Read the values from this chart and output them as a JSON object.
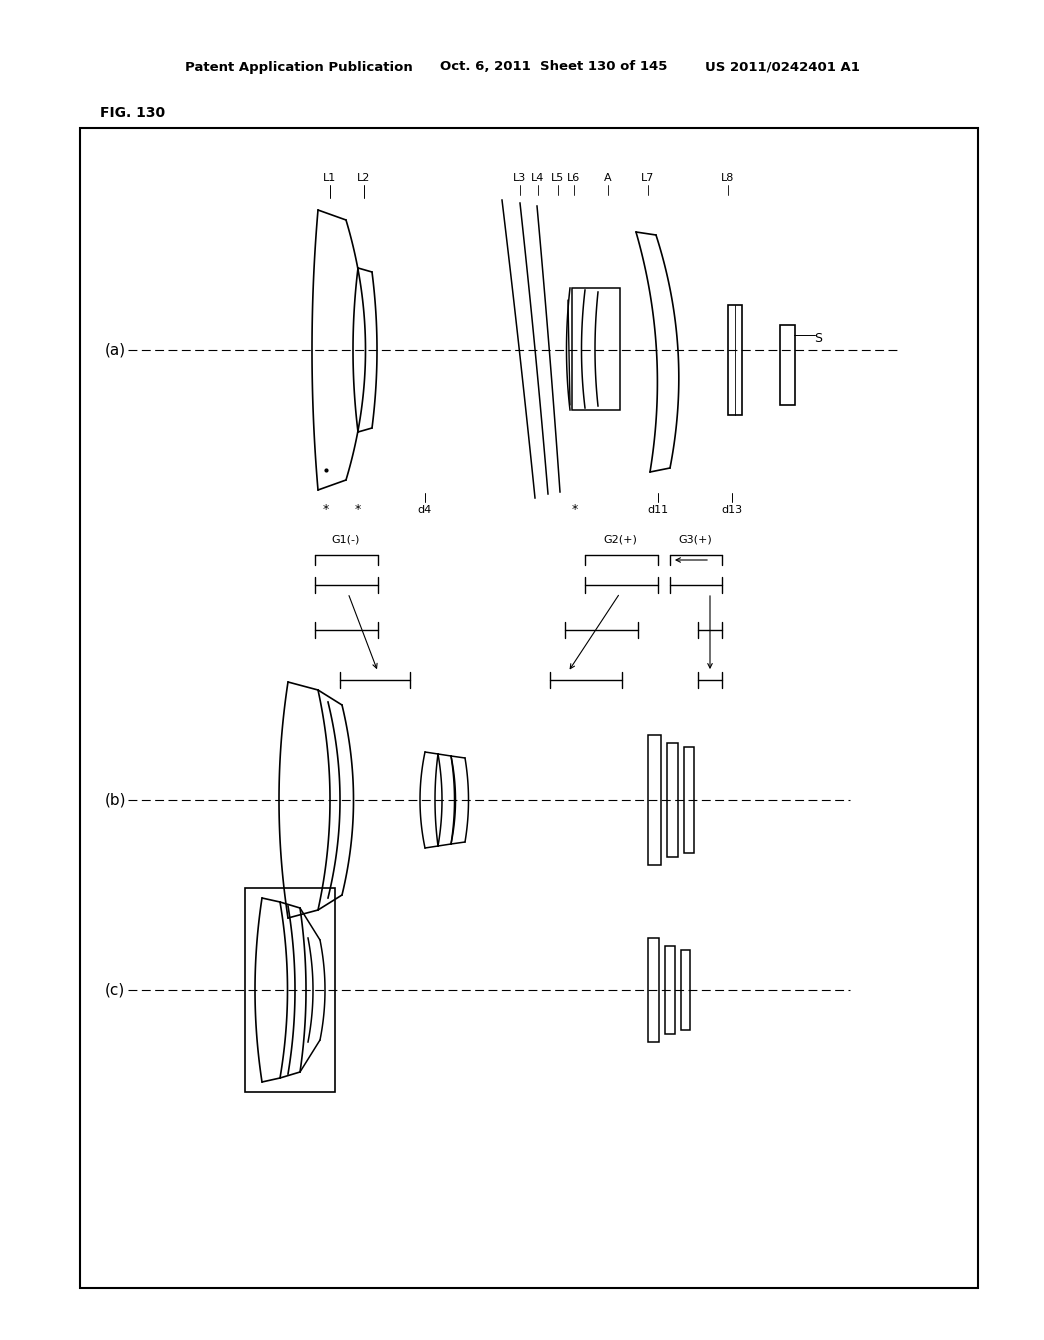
{
  "title_line1": "Patent Application Publication",
  "title_line2": "Oct. 6, 2011",
  "title_line3": "Sheet 130 of 145",
  "title_line4": "US 2011/0242401 A1",
  "fig_label": "FIG. 130",
  "background_color": "#ffffff",
  "border_color": "#000000",
  "line_color": "#000000",
  "text_color": "#000000"
}
